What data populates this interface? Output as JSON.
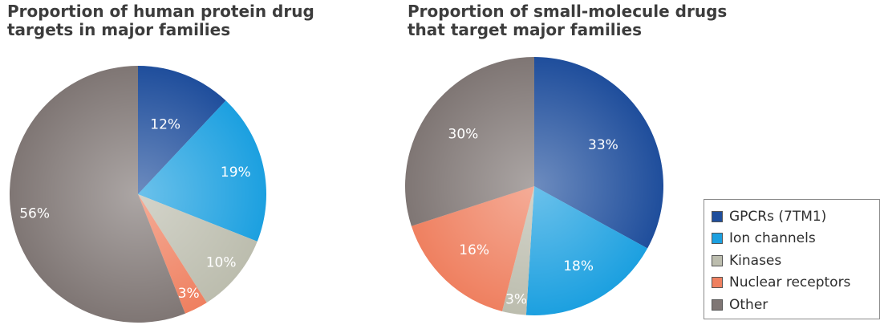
{
  "colors": {
    "GPCRs (7TM1)": "#1f4e9c",
    "Ion channels": "#1ca0e0",
    "Kinases": "#bcbdae",
    "Nuclear receptors": "#ef8060",
    "Other": "#7f7674"
  },
  "legend": {
    "items": [
      {
        "label": "GPCRs (7TM1)",
        "color": "#1f4e9c"
      },
      {
        "label": "Ion channels",
        "color": "#1ca0e0"
      },
      {
        "label": "Kinases",
        "color": "#bcbdae"
      },
      {
        "label": "Nuclear receptors",
        "color": "#ef8060"
      },
      {
        "label": "Other",
        "color": "#7f7674"
      }
    ]
  },
  "chart_data": [
    {
      "type": "pie",
      "title": "Proportion of human protein drug\ntargets in major families",
      "slices": [
        {
          "label": "GPCRs (7TM1)",
          "value": 12,
          "display": "12%"
        },
        {
          "label": "Ion channels",
          "value": 19,
          "display": "19%"
        },
        {
          "label": "Kinases",
          "value": 10,
          "display": "10%"
        },
        {
          "label": "Nuclear receptors",
          "value": 3,
          "display": "3%"
        },
        {
          "label": "Other",
          "value": 56,
          "display": "56%"
        }
      ]
    },
    {
      "type": "pie",
      "title": "Proportion of small-molecule drugs\nthat target major families",
      "slices": [
        {
          "label": "GPCRs (7TM1)",
          "value": 33,
          "display": "33%"
        },
        {
          "label": "Ion channels",
          "value": 18,
          "display": "18%"
        },
        {
          "label": "Kinases",
          "value": 3,
          "display": "3%"
        },
        {
          "label": "Nuclear receptors",
          "value": 16,
          "display": "16%"
        },
        {
          "label": "Other",
          "value": 30,
          "display": "30%"
        }
      ]
    }
  ]
}
